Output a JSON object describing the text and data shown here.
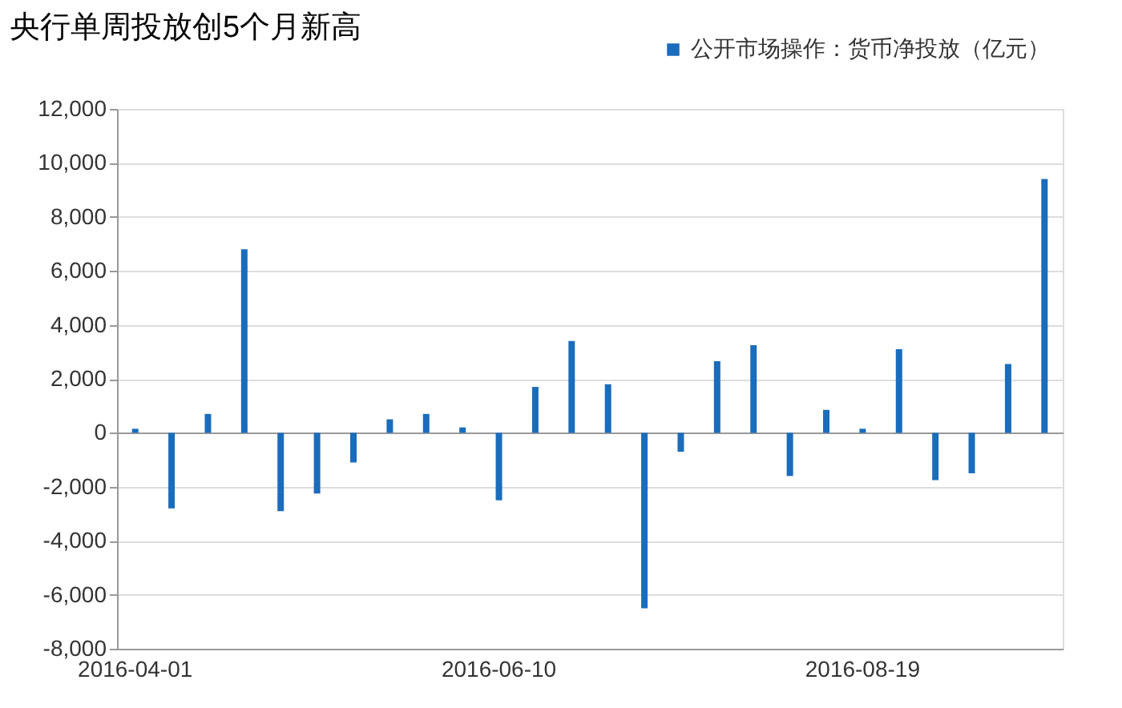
{
  "chart_data": {
    "type": "bar",
    "title": "央行单周投放创5个月新高",
    "categories": [
      "2016-04-01",
      null,
      null,
      null,
      null,
      null,
      null,
      null,
      null,
      null,
      "2016-06-10",
      null,
      null,
      null,
      null,
      null,
      null,
      null,
      null,
      null,
      "2016-08-19",
      null,
      null,
      null,
      null,
      null
    ],
    "series": [
      {
        "name": "公开市场操作：货币净投放（亿元）",
        "color": "#1a6cbc",
        "values": [
          150,
          -2800,
          700,
          6800,
          -2900,
          -2250,
          -1100,
          500,
          700,
          200,
          -2500,
          1700,
          3400,
          1800,
          -6500,
          -700,
          2650,
          3250,
          -1600,
          850,
          150,
          3100,
          -1750,
          -1500,
          2550,
          9400
        ]
      }
    ],
    "ylim": [
      -8000,
      12000
    ],
    "yticks": [
      {
        "value": -8000,
        "label": "-8,000"
      },
      {
        "value": -6000,
        "label": "-6,000"
      },
      {
        "value": -4000,
        "label": "-4,000"
      },
      {
        "value": -2000,
        "label": "-2,000"
      },
      0,
      {
        "value": 2000,
        "label": "2,000"
      },
      {
        "value": 4000,
        "label": "4,000"
      },
      {
        "value": 6000,
        "label": "6,000"
      },
      {
        "value": 8000,
        "label": "8,000"
      },
      {
        "value": 10000,
        "label": "10,000"
      },
      {
        "value": 12000,
        "label": "12,000"
      }
    ],
    "grid": "y",
    "legend": "top right"
  }
}
